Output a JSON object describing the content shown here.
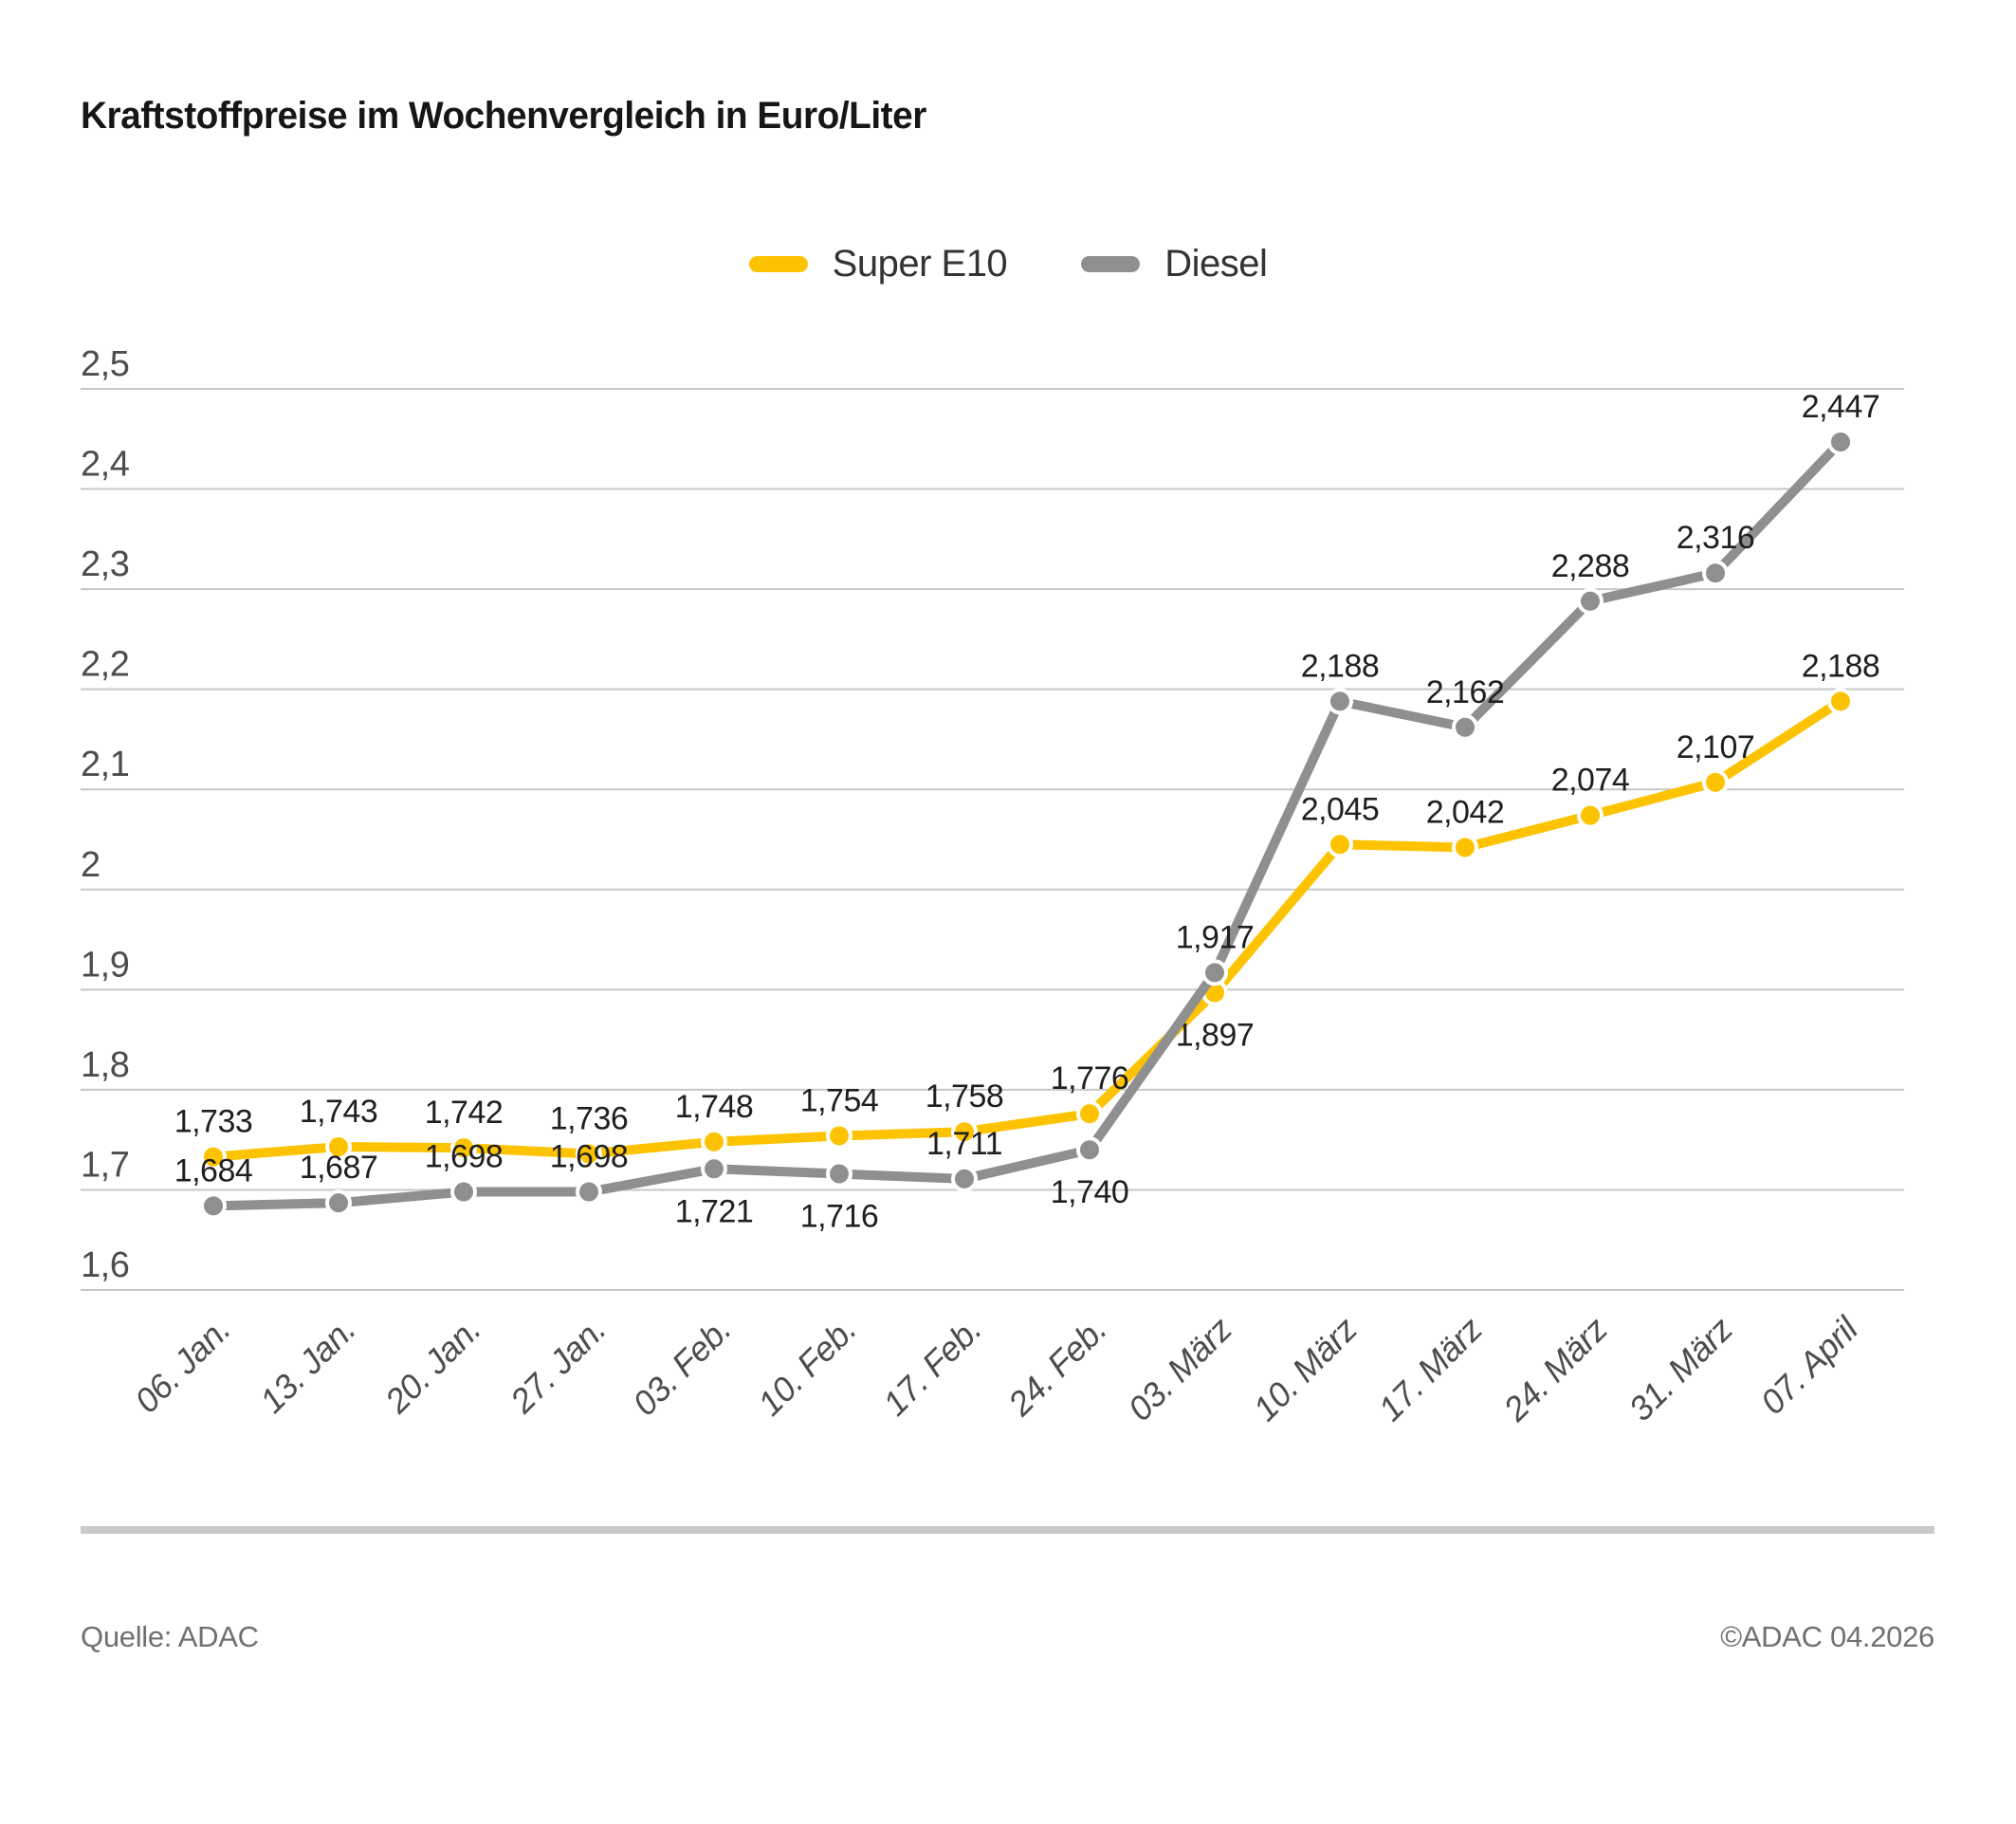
{
  "title": "Kraftstoffpreise im Wochenvergleich in Euro/Liter",
  "legend": [
    {
      "label": "Super E10",
      "color": "#FDC300"
    },
    {
      "label": "Diesel",
      "color": "#8F8F8F"
    }
  ],
  "footer": {
    "source": "Quelle: ADAC",
    "copyright": "©ADAC 04.2026"
  },
  "chart_data": {
    "type": "line",
    "title": "Kraftstoffpreise im Wochenvergleich in Euro/Liter",
    "xlabel": "",
    "ylabel": "Euro/Liter",
    "ylim": [
      1.6,
      2.5
    ],
    "ytick_step": 0.1,
    "grid": "horizontal",
    "legend_position": "top-center",
    "decimal_separator": ",",
    "categories": [
      "06. Jan.",
      "13. Jan.",
      "20. Jan.",
      "27. Jan.",
      "03. Feb.",
      "10. Feb.",
      "17. Feb.",
      "24. Feb.",
      "03. März",
      "10. März",
      "17. März",
      "24. März",
      "31. März",
      "07. April"
    ],
    "series": [
      {
        "name": "Super E10",
        "color": "#FDC300",
        "values": [
          1.733,
          1.743,
          1.742,
          1.736,
          1.748,
          1.754,
          1.758,
          1.776,
          1.897,
          2.045,
          2.042,
          2.074,
          2.107,
          2.188
        ],
        "label_positions": [
          "above",
          "above",
          "above",
          "above",
          "above",
          "above",
          "above",
          "above",
          "below",
          "above",
          "above",
          "above",
          "above",
          "above"
        ]
      },
      {
        "name": "Diesel",
        "color": "#8F8F8F",
        "values": [
          1.684,
          1.687,
          1.698,
          1.698,
          1.721,
          1.716,
          1.711,
          1.74,
          1.917,
          2.188,
          2.162,
          2.288,
          2.316,
          2.447
        ],
        "label_positions": [
          "above",
          "above",
          "above",
          "above",
          "below",
          "below",
          "above",
          "below",
          "above",
          "above",
          "above",
          "above",
          "above",
          "above"
        ]
      }
    ],
    "style": {
      "grid_color": "#c7c7c7",
      "tick_label_color": "#4d4d4d",
      "data_label_color": "#1f1f1f",
      "marker_ring_color": "#ffffff"
    }
  }
}
